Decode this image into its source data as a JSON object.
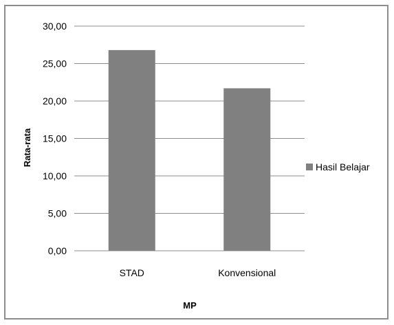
{
  "chart_data": {
    "type": "bar",
    "categories": [
      "STAD",
      "Konvensional"
    ],
    "series": [
      {
        "name": "Hasil Belajar",
        "values": [
          26.8,
          21.7
        ],
        "color": "#808080"
      }
    ],
    "xlabel": "MP",
    "ylabel": "Rata-rata",
    "ylim": [
      0,
      30
    ],
    "yticks": [
      "0,00",
      "5,00",
      "10,00",
      "15,00",
      "20,00",
      "25,00",
      "30,00"
    ],
    "grid": true,
    "legend_position": "right"
  }
}
